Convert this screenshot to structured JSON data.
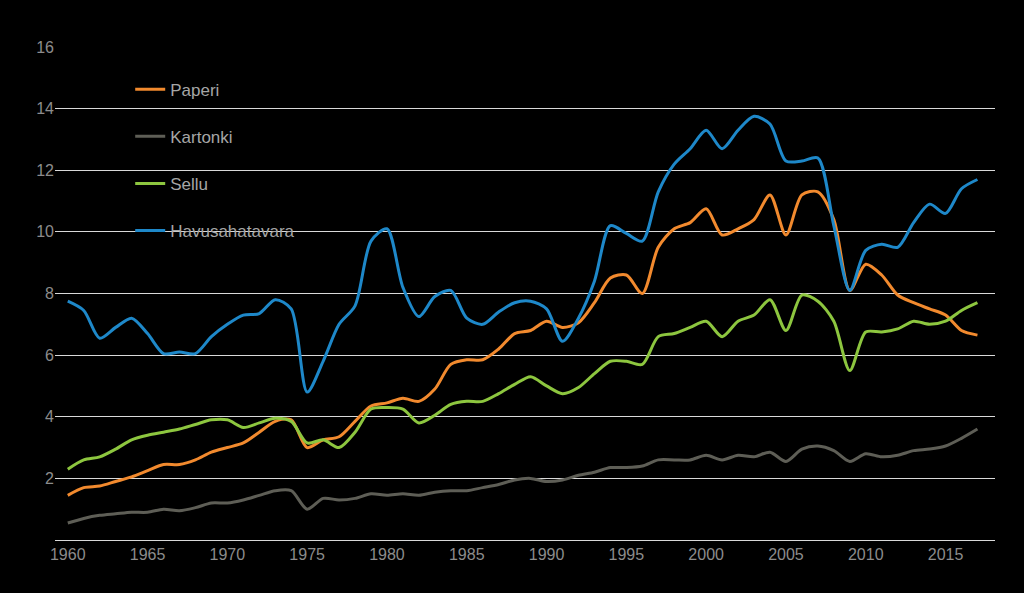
{
  "chart_data": {
    "type": "line",
    "x": [
      1960,
      1961,
      1962,
      1963,
      1964,
      1965,
      1966,
      1967,
      1968,
      1969,
      1970,
      1971,
      1972,
      1973,
      1974,
      1975,
      1976,
      1977,
      1978,
      1979,
      1980,
      1981,
      1982,
      1983,
      1984,
      1985,
      1986,
      1987,
      1988,
      1989,
      1990,
      1991,
      1992,
      1993,
      1994,
      1995,
      1996,
      1997,
      1998,
      1999,
      2000,
      2001,
      2002,
      2003,
      2004,
      2005,
      2006,
      2007,
      2008,
      2009,
      2010,
      2011,
      2012,
      2013,
      2014,
      2015,
      2016,
      2017
    ],
    "series": [
      {
        "name": "Paperi",
        "color": "#F28A2E",
        "values": [
          1.45,
          1.7,
          1.75,
          1.9,
          2.05,
          2.25,
          2.45,
          2.45,
          2.6,
          2.85,
          3.0,
          3.15,
          3.5,
          3.85,
          3.9,
          3.0,
          3.25,
          3.35,
          3.85,
          4.35,
          4.45,
          4.6,
          4.5,
          4.9,
          5.7,
          5.85,
          5.85,
          6.2,
          6.7,
          6.8,
          7.1,
          6.9,
          7.05,
          7.7,
          8.5,
          8.6,
          8.0,
          9.5,
          10.1,
          10.3,
          10.75,
          9.9,
          10.1,
          10.4,
          11.2,
          9.9,
          11.2,
          11.3,
          10.4,
          8.1,
          8.95,
          8.6,
          7.95,
          7.7,
          7.5,
          7.3,
          6.8,
          6.65
        ]
      },
      {
        "name": "Kartonki",
        "color": "#5E5E56",
        "values": [
          0.55,
          0.7,
          0.8,
          0.85,
          0.9,
          0.9,
          1.0,
          0.95,
          1.05,
          1.2,
          1.2,
          1.3,
          1.45,
          1.6,
          1.6,
          1.0,
          1.35,
          1.3,
          1.35,
          1.5,
          1.45,
          1.5,
          1.45,
          1.55,
          1.6,
          1.6,
          1.7,
          1.8,
          1.95,
          2.0,
          1.9,
          1.95,
          2.1,
          2.2,
          2.35,
          2.35,
          2.4,
          2.6,
          2.6,
          2.6,
          2.75,
          2.6,
          2.75,
          2.7,
          2.85,
          2.55,
          2.95,
          3.05,
          2.9,
          2.55,
          2.8,
          2.7,
          2.75,
          2.9,
          2.95,
          3.05,
          3.3,
          3.6
        ]
      },
      {
        "name": "Sellu",
        "color": "#8DC63F",
        "values": [
          2.3,
          2.6,
          2.7,
          2.95,
          3.25,
          3.4,
          3.5,
          3.6,
          3.75,
          3.9,
          3.9,
          3.65,
          3.8,
          3.95,
          3.85,
          3.15,
          3.25,
          3.0,
          3.5,
          4.25,
          4.3,
          4.25,
          3.8,
          4.05,
          4.4,
          4.5,
          4.5,
          4.75,
          5.05,
          5.3,
          5.0,
          4.75,
          4.95,
          5.4,
          5.8,
          5.8,
          5.7,
          6.6,
          6.7,
          6.9,
          7.1,
          6.6,
          7.1,
          7.3,
          7.8,
          6.8,
          7.95,
          7.75,
          7.1,
          5.5,
          6.75,
          6.75,
          6.85,
          7.1,
          7.0,
          7.1,
          7.45,
          7.7
        ]
      },
      {
        "name": "Havusahatavara",
        "color": "#1E88C9",
        "values": [
          7.75,
          7.45,
          6.55,
          6.9,
          7.2,
          6.7,
          6.05,
          6.1,
          6.05,
          6.6,
          7.0,
          7.3,
          7.35,
          7.8,
          7.5,
          4.8,
          5.8,
          7.0,
          7.6,
          9.7,
          10.1,
          8.2,
          7.25,
          7.9,
          8.1,
          7.2,
          7.0,
          7.4,
          7.7,
          7.75,
          7.5,
          6.45,
          7.2,
          8.4,
          10.2,
          9.95,
          9.7,
          11.3,
          12.2,
          12.7,
          13.3,
          12.7,
          13.3,
          13.75,
          13.5,
          12.3,
          12.3,
          12.4,
          10.2,
          8.1,
          9.4,
          9.6,
          9.5,
          10.3,
          10.9,
          10.6,
          11.4,
          11.7
        ]
      }
    ],
    "xlim": [
      1959.2,
      2018.1
    ],
    "xticks": [
      1960,
      1965,
      1970,
      1975,
      1980,
      1985,
      1990,
      1995,
      2000,
      2005,
      2010,
      2015
    ],
    "ylim": [
      0,
      16
    ],
    "yticks": [
      2,
      4,
      6,
      8,
      10,
      12,
      14,
      16
    ],
    "grid": true,
    "legend": "upper left",
    "line_style": "smooth"
  }
}
